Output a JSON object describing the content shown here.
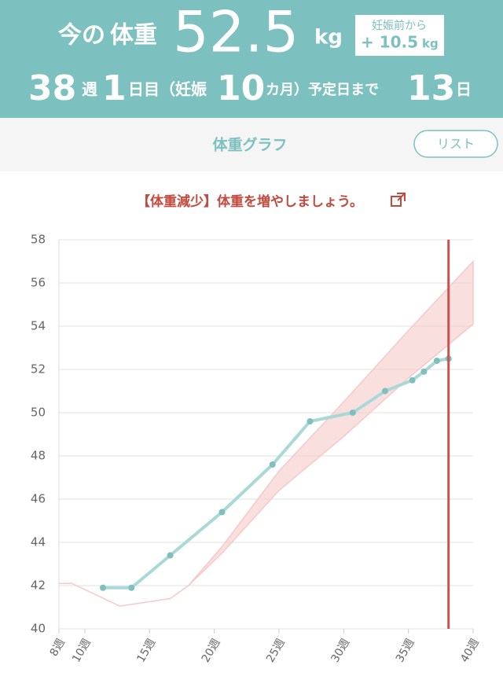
{
  "header": {
    "label_now": "今の",
    "label_weight": "体重",
    "weight": "52.5",
    "weight_unit": "kg",
    "diff_label": "妊娠前から",
    "diff_value": "+ 10.5",
    "diff_unit": "kg",
    "week": "38",
    "week_unit": "週",
    "day": "1",
    "day_unit": "日目（妊娠",
    "month": "10",
    "month_unit": "カ月）予定日まで",
    "days_left": "13",
    "days_left_unit": "日"
  },
  "tabs": {
    "title": "体重グラフ",
    "list_button": "リスト"
  },
  "chart_data": {
    "type": "line",
    "title": "【体重減少】体重を増やしましょう。",
    "x": [
      11.4,
      13.6,
      16.6,
      20.6,
      24.5,
      27.4,
      30.7,
      33.2,
      35.3,
      36.2,
      37.2,
      38.1
    ],
    "series": [
      {
        "color": "#a9d9d7",
        "point_color": "#7fbfbd",
        "values": [
          41.9,
          41.9,
          43.4,
          45.4,
          47.6,
          49.6,
          50.0,
          51.0,
          51.5,
          51.9,
          52.4,
          52.5
        ]
      }
    ],
    "band": {
      "color": "#f6c9c9",
      "x": [
        8,
        9,
        12.7,
        16.6,
        18,
        20.6,
        25,
        30,
        35,
        40
      ],
      "upper": [
        42.1,
        42.1,
        41.05,
        41.4,
        42,
        43.8,
        47.3,
        50.5,
        53.8,
        57
      ],
      "lower": [
        42.1,
        42.1,
        41.05,
        41.4,
        42,
        43.5,
        46.4,
        48.9,
        51.6,
        54.1
      ]
    },
    "current_x": 38.1,
    "current_color": "#c9524e",
    "xlim": [
      8,
      40
    ],
    "xticks": [
      {
        "value": 8,
        "label": "8週"
      },
      {
        "value": 10,
        "label": "10週"
      },
      {
        "value": 15,
        "label": "15週"
      },
      {
        "value": 20,
        "label": "20週"
      },
      {
        "value": 25,
        "label": "25週"
      },
      {
        "value": 30,
        "label": "30週"
      },
      {
        "value": 35,
        "label": "35週"
      },
      {
        "value": 40,
        "label": "40週"
      }
    ],
    "ylim": [
      40,
      58
    ],
    "yticks": [
      40,
      42,
      44,
      46,
      48,
      50,
      52,
      54,
      56,
      58
    ],
    "grid": true
  }
}
